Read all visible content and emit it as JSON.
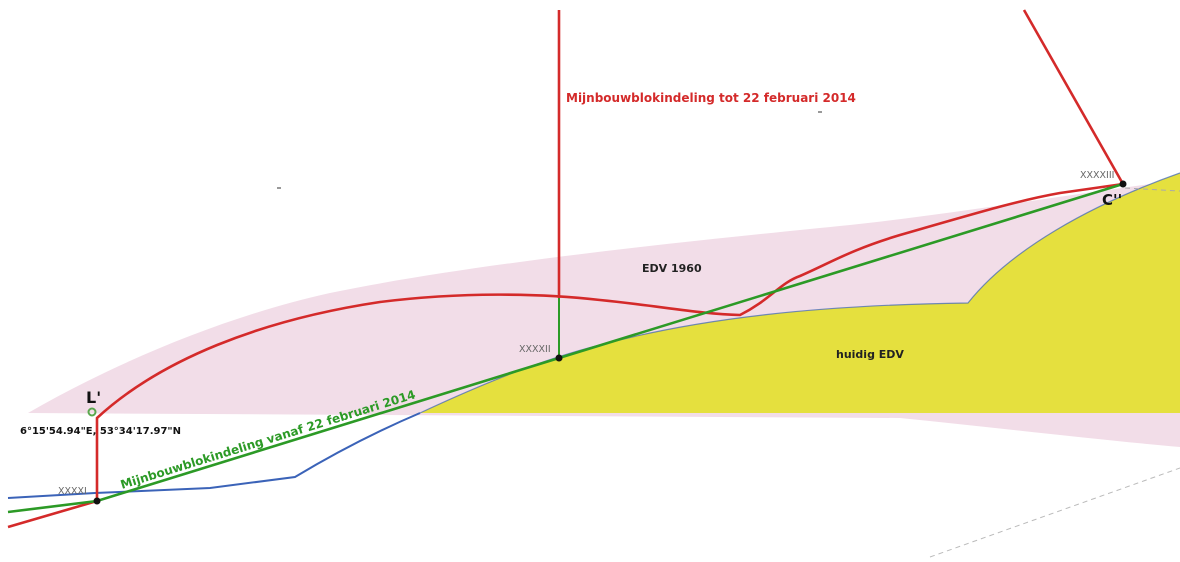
{
  "colors": {
    "edv1960_fill": "#f2dde8",
    "huidig_edv_fill": "#e5e03e",
    "old_division_line": "#d42a2a",
    "new_division_line": "#2c9a26",
    "coast_line": "#3b63b8",
    "point": "#111111",
    "lprime_marker": "#5aa84e"
  },
  "labels": {
    "old_division": "Mijnbouwblokindeling tot 22 februari 2014",
    "new_division": "Mijnbouwblokindeling vanaf 22 februari 2014",
    "edv1960": "EDV 1960",
    "huidig_edv": "huidig EDV",
    "point_l_prime": "L'",
    "point_c_prime": "C''",
    "coordinate": "6°15'54.94\"E, 53°34'17.97\"N",
    "xxxxi": "XXXXI",
    "xxxxii": "XXXXII",
    "xxxxiii": "XXXXIII"
  }
}
